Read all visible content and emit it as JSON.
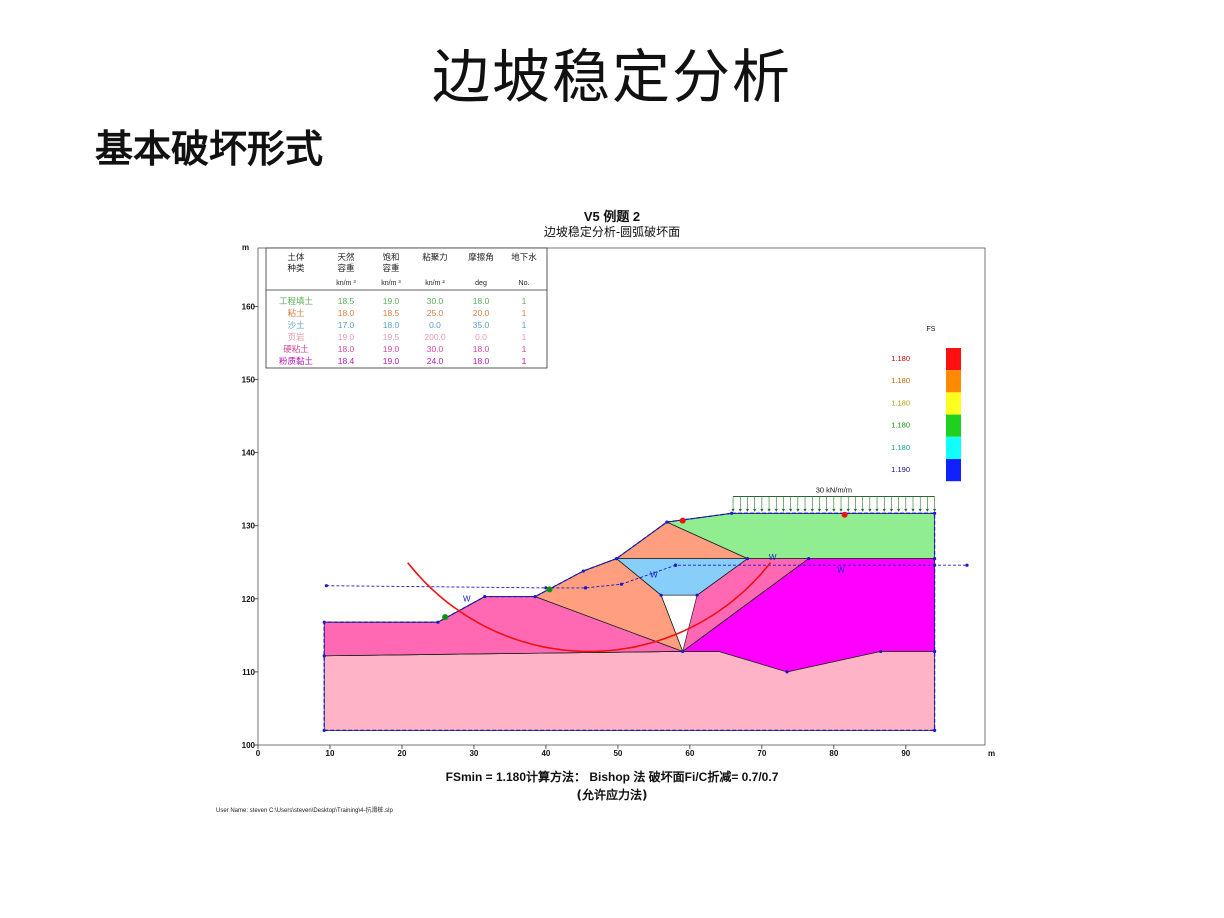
{
  "slide": {
    "title": "边坡稳定分析",
    "subtitle": "基本破坏形式"
  },
  "figure": {
    "title": "V5 例题 2",
    "subtitle": "边坡稳定分析-圆弧破坏面",
    "footer_line1": "FSmin = 1.180计算方法： Bishop 法 破坏面Fi/C折减= 0.7/0.7",
    "footer_line2": "(允许应力法)",
    "user_line": "User Name: steven   C:\\Users\\steven\\Desktop\\Training\\4-抗滑桩.slp"
  },
  "chart_data": {
    "type": "cross-section",
    "xlabel": "m",
    "ylabel": "m",
    "xlim": [
      0,
      101
    ],
    "ylim": [
      100,
      168
    ],
    "xticks": [
      0,
      10,
      20,
      30,
      40,
      50,
      60,
      70,
      80,
      90
    ],
    "yticks": [
      100,
      110,
      120,
      130,
      140,
      150,
      160
    ],
    "load_label": "30 kN/m/m",
    "water_marker": "W",
    "material_table": {
      "headers": [
        [
          "土体",
          "种类"
        ],
        [
          "天然",
          "容重"
        ],
        [
          "饱和",
          "容重"
        ],
        [
          "粘聚力",
          ""
        ],
        [
          "摩擦角",
          ""
        ],
        [
          "地下水",
          ""
        ]
      ],
      "units": [
        "",
        "kn/m ³",
        "kn/m ³",
        "kn/m ²",
        "deg",
        "No."
      ],
      "rows": [
        {
          "name": "工程填土",
          "unit_wt": "18.5",
          "sat_wt": "19.0",
          "cohesion": "30.0",
          "friction": "18.0",
          "water": "1",
          "color": "#5cae5c"
        },
        {
          "name": "粘土",
          "unit_wt": "18.0",
          "sat_wt": "18.5",
          "cohesion": "25.0",
          "friction": "20.0",
          "water": "1",
          "color": "#d77f4a"
        },
        {
          "name": "沙土",
          "unit_wt": "17.0",
          "sat_wt": "18.0",
          "cohesion": "0.0",
          "friction": "35.0",
          "water": "1",
          "color": "#5a9fc9"
        },
        {
          "name": "页岩",
          "unit_wt": "19.0",
          "sat_wt": "19.5",
          "cohesion": "200.0",
          "friction": "0.0",
          "water": "1",
          "color": "#e79ab1"
        },
        {
          "name": "硬粘土",
          "unit_wt": "18.0",
          "sat_wt": "19.0",
          "cohesion": "30.0",
          "friction": "18.0",
          "water": "1",
          "color": "#d6489e"
        },
        {
          "name": "粉质黏土",
          "unit_wt": "18.4",
          "sat_wt": "19.0",
          "cohesion": "24.0",
          "friction": "18.0",
          "water": "1",
          "color": "#b41ab4"
        }
      ]
    },
    "fs_legend": {
      "title": "FS",
      "items": [
        {
          "label": "1.180",
          "color": "#ff1010",
          "text_color": "#c00000"
        },
        {
          "label": "1.180",
          "color": "#ff8a00",
          "text_color": "#c06000"
        },
        {
          "label": "1.180",
          "color": "#ffff20",
          "text_color": "#b0a000"
        },
        {
          "label": "1.180",
          "color": "#20d020",
          "text_color": "#109010"
        },
        {
          "label": "1.180",
          "color": "#10ffff",
          "text_color": "#10a0a0"
        },
        {
          "label": "1.190",
          "color": "#1020ff",
          "text_color": "#101090"
        }
      ]
    },
    "regions": [
      {
        "name": "shale",
        "color": "#ffb3c6",
        "points": [
          [
            9.2,
            102
          ],
          [
            94,
            102
          ],
          [
            94,
            112.8
          ],
          [
            86.5,
            112.8
          ],
          [
            73.5,
            110
          ],
          [
            64,
            112.8
          ],
          [
            59,
            112.8
          ],
          [
            9.2,
            112.2
          ]
        ]
      },
      {
        "name": "silty-clay",
        "color": "#ff00ff",
        "points": [
          [
            59,
            112.8
          ],
          [
            76.5,
            125.5
          ],
          [
            94,
            125.5
          ],
          [
            94,
            112.8
          ],
          [
            86.5,
            112.8
          ],
          [
            73.5,
            110
          ],
          [
            64,
            112.8
          ]
        ]
      },
      {
        "name": "hard-clay",
        "color": "#ff69b4",
        "points": [
          [
            9.2,
            112.2
          ],
          [
            59,
            112.8
          ],
          [
            38.5,
            120.3
          ],
          [
            31.5,
            120.3
          ],
          [
            25,
            116.8
          ],
          [
            9.2,
            116.8
          ]
        ]
      },
      {
        "name": "hard-clay-mid",
        "color": "#ff69b4",
        "points": [
          [
            59,
            112.8
          ],
          [
            76.5,
            125.5
          ],
          [
            68,
            125.5
          ],
          [
            61,
            120.5
          ]
        ]
      },
      {
        "name": "clay-lower",
        "color": "#ff9f80",
        "points": [
          [
            38.5,
            120.3
          ],
          [
            45.2,
            123.8
          ],
          [
            49.8,
            125.5
          ],
          [
            56,
            120.5
          ],
          [
            59,
            112.8
          ]
        ]
      },
      {
        "name": "sand",
        "color": "#87cefa",
        "points": [
          [
            49.8,
            125.5
          ],
          [
            68,
            125.5
          ],
          [
            61,
            120.5
          ],
          [
            56,
            120.5
          ]
        ]
      },
      {
        "name": "clay-upper",
        "color": "#ff9f80",
        "points": [
          [
            49.8,
            125.5
          ],
          [
            56.8,
            130.5
          ],
          [
            68,
            125.5
          ]
        ]
      },
      {
        "name": "fill",
        "color": "#90ee90",
        "points": [
          [
            56.8,
            130.5
          ],
          [
            65.8,
            131.7
          ],
          [
            94,
            131.7
          ],
          [
            94,
            125.5
          ],
          [
            68,
            125.5
          ]
        ]
      }
    ],
    "internal_lines": [
      [
        [
          38.5,
          120.3
        ],
        [
          59,
          112.8
        ]
      ],
      [
        [
          56,
          120.5
        ],
        [
          59,
          112.8
        ]
      ],
      [
        [
          49.8,
          125.5
        ],
        [
          56,
          120.5
        ]
      ],
      [
        [
          56,
          120.5
        ],
        [
          61,
          120.5
        ]
      ],
      [
        [
          61,
          120.5
        ],
        [
          68,
          125.5
        ]
      ],
      [
        [
          49.8,
          125.5
        ],
        [
          68,
          125.5
        ]
      ],
      [
        [
          56.8,
          130.5
        ],
        [
          68,
          125.5
        ]
      ],
      [
        [
          68,
          125.5
        ],
        [
          94,
          125.5
        ]
      ],
      [
        [
          59,
          112.8
        ],
        [
          76.5,
          125.5
        ]
      ],
      [
        [
          59,
          112.8
        ],
        [
          64,
          112.8
        ]
      ],
      [
        [
          9.2,
          112.2
        ],
        [
          59,
          112.8
        ]
      ]
    ],
    "ground_surface": [
      [
        9.2,
        116.8
      ],
      [
        25,
        116.8
      ],
      [
        31.5,
        120.3
      ],
      [
        38.5,
        120.3
      ],
      [
        45.2,
        123.8
      ],
      [
        49.8,
        125.5
      ],
      [
        56.8,
        130.5
      ],
      [
        65.8,
        131.7
      ],
      [
        94,
        131.7
      ]
    ],
    "water_table": [
      [
        9.5,
        121.8
      ],
      [
        40,
        121.5
      ],
      [
        45.5,
        121.5
      ],
      [
        50.5,
        122
      ],
      [
        58,
        124.6
      ],
      [
        98.5,
        124.6
      ]
    ],
    "slip_circle": {
      "center": [
        46,
        145
      ],
      "radius": 32.2,
      "angle_start": 218.5,
      "angle_end": 321.5
    },
    "slip_endpoints": [
      [
        26,
        117.5
      ],
      [
        81.5,
        131.5
      ]
    ],
    "green_points": [
      [
        26,
        117.5
      ],
      [
        40.5,
        121.3
      ]
    ],
    "red_points": [
      [
        59,
        130.7
      ],
      [
        81.5,
        131.5
      ]
    ],
    "load_range": [
      66,
      94
    ],
    "load_top": 134
  }
}
